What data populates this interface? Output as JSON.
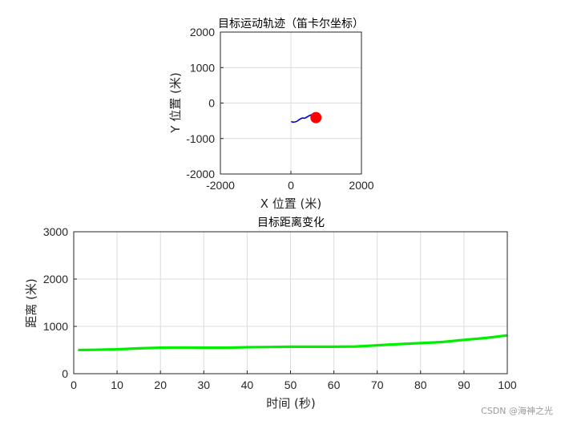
{
  "watermark": "CSDN @海神之光",
  "chart_data": [
    {
      "type": "line",
      "title": "目标运动轨迹（笛卡尔坐标）",
      "xlabel": "X 位置 (米)",
      "ylabel": "Y 位置 (米)",
      "xlim": [
        -2000,
        2000
      ],
      "ylim": [
        -2000,
        2000
      ],
      "xticks": [
        -2000,
        0,
        2000
      ],
      "yticks": [
        2000,
        1000,
        0,
        -1000,
        -2000
      ],
      "grid": true,
      "colors": {
        "trajectory": "#0000cc",
        "current": "#ff0000"
      },
      "series": [
        {
          "x": [
            10,
            60,
            120,
            180,
            230,
            280,
            330,
            380,
            430,
            480,
            530,
            580,
            630,
            680,
            710
          ],
          "y": [
            -520,
            -540,
            -530,
            -510,
            -470,
            -440,
            -420,
            -430,
            -410,
            -380,
            -350,
            -330,
            -320,
            -340,
            -410
          ]
        }
      ],
      "current_point": {
        "x": 710,
        "y": -410
      }
    },
    {
      "type": "line",
      "title": "目标距离变化",
      "xlabel": "时间 (秒)",
      "ylabel": "距离 (米)",
      "xlim": [
        0,
        100
      ],
      "ylim": [
        0,
        3000
      ],
      "xticks": [
        0,
        10,
        20,
        30,
        40,
        50,
        60,
        70,
        80,
        90,
        100
      ],
      "yticks": [
        3000,
        2000,
        1000,
        0
      ],
      "grid": true,
      "colors": {
        "line": "#00ee00"
      },
      "series": [
        {
          "x": [
            1,
            5,
            10,
            15,
            20,
            25,
            30,
            35,
            40,
            45,
            50,
            55,
            60,
            65,
            70,
            75,
            80,
            85,
            90,
            95,
            100
          ],
          "y": [
            500,
            505,
            515,
            535,
            550,
            555,
            550,
            550,
            560,
            565,
            570,
            570,
            570,
            575,
            600,
            625,
            645,
            670,
            715,
            755,
            810
          ]
        }
      ]
    }
  ]
}
